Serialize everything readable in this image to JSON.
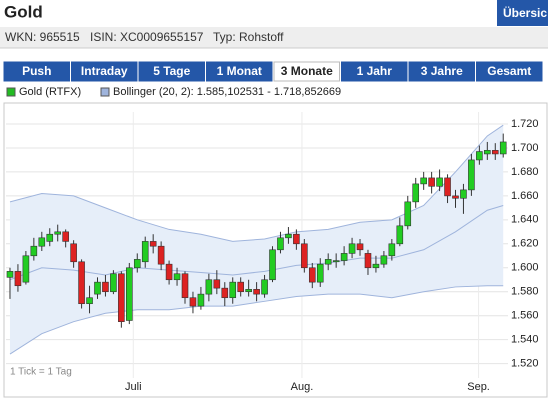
{
  "header": {
    "title": "Gold",
    "button": "Übersic",
    "info": [
      "WKN: 965515",
      "ISIN: XC0009655157",
      "Typ: Rohstoff"
    ]
  },
  "tabs": [
    "Push",
    "Intraday",
    "5 Tage",
    "1 Monat",
    "3 Monate",
    "1 Jahr",
    "3 Jahre",
    "Gesamt"
  ],
  "active_tab": 4,
  "chart_data": {
    "type": "candlestick",
    "series": [
      {
        "name": "Gold (RTFX)",
        "color": "#22bb22",
        "up_color": "#22cc22",
        "down_color": "#dd2222",
        "open": [
          1592,
          1597,
          1588,
          1610,
          1618,
          1622,
          1628,
          1630,
          1620,
          1605,
          1570,
          1578,
          1588,
          1580,
          1595,
          1556,
          1600,
          1605,
          1622,
          1618,
          1603,
          1590,
          1595,
          1575,
          1568,
          1578,
          1590,
          1583,
          1575,
          1588,
          1580,
          1582,
          1578,
          1590,
          1615,
          1625,
          1628,
          1620,
          1600,
          1588,
          1603,
          1605,
          1606,
          1612,
          1620,
          1612,
          1600,
          1603,
          1610,
          1620,
          1635,
          1655,
          1670,
          1675,
          1668,
          1675,
          1660,
          1658,
          1665,
          1690,
          1695,
          1698,
          1695
        ],
        "high": [
          1600,
          1603,
          1614,
          1625,
          1630,
          1633,
          1636,
          1632,
          1623,
          1607,
          1585,
          1592,
          1594,
          1598,
          1597,
          1604,
          1612,
          1626,
          1628,
          1622,
          1606,
          1600,
          1597,
          1580,
          1584,
          1595,
          1598,
          1588,
          1592,
          1592,
          1590,
          1588,
          1594,
          1618,
          1630,
          1634,
          1632,
          1624,
          1604,
          1608,
          1612,
          1612,
          1618,
          1625,
          1624,
          1615,
          1610,
          1614,
          1624,
          1642,
          1660,
          1675,
          1680,
          1680,
          1682,
          1678,
          1665,
          1670,
          1695,
          1702,
          1705,
          1704,
          1712
        ],
        "low": [
          1574,
          1580,
          1586,
          1606,
          1614,
          1618,
          1622,
          1617,
          1600,
          1566,
          1562,
          1574,
          1576,
          1578,
          1550,
          1553,
          1596,
          1600,
          1612,
          1598,
          1586,
          1585,
          1570,
          1562,
          1565,
          1572,
          1578,
          1568,
          1570,
          1576,
          1576,
          1572,
          1575,
          1588,
          1612,
          1620,
          1615,
          1596,
          1583,
          1584,
          1598,
          1600,
          1602,
          1608,
          1610,
          1594,
          1596,
          1600,
          1606,
          1618,
          1632,
          1650,
          1665,
          1662,
          1664,
          1654,
          1650,
          1645,
          1660,
          1686,
          1690,
          1690,
          1692
        ],
        "close": [
          1597,
          1585,
          1610,
          1618,
          1625,
          1628,
          1630,
          1622,
          1605,
          1570,
          1575,
          1588,
          1580,
          1595,
          1555,
          1600,
          1607,
          1622,
          1618,
          1603,
          1590,
          1595,
          1575,
          1568,
          1578,
          1590,
          1583,
          1575,
          1588,
          1580,
          1582,
          1578,
          1590,
          1615,
          1625,
          1628,
          1620,
          1600,
          1588,
          1603,
          1607,
          1606,
          1612,
          1620,
          1615,
          1600,
          1603,
          1610,
          1620,
          1635,
          1655,
          1670,
          1675,
          1668,
          1675,
          1660,
          1658,
          1665,
          1690,
          1697,
          1698,
          1695,
          1705
        ]
      },
      {
        "name": "Bollinger (20, 2): 1.585,102531 - 1.718,852669",
        "color": "#9fb4dc",
        "fill": "#e6eef9",
        "x": [
          0,
          4,
          8,
          12,
          16,
          20,
          24,
          28,
          32,
          36,
          40,
          44,
          48,
          52,
          56,
          60,
          62
        ],
        "upper": [
          1655,
          1662,
          1660,
          1650,
          1640,
          1632,
          1628,
          1622,
          1624,
          1630,
          1632,
          1638,
          1640,
          1652,
          1680,
          1710,
          1719
        ],
        "middle": [
          1590,
          1600,
          1598,
          1594,
          1600,
          1598,
          1596,
          1594,
          1597,
          1602,
          1604,
          1608,
          1608,
          1615,
          1630,
          1648,
          1652
        ],
        "lower": [
          1528,
          1545,
          1555,
          1562,
          1565,
          1565,
          1568,
          1568,
          1572,
          1576,
          1578,
          1578,
          1575,
          1580,
          1584,
          1585,
          1585
        ]
      }
    ],
    "xlim": [
      -0.5,
      62.6
    ],
    "xticks": [
      {
        "value": 15.5,
        "label": "Juli"
      },
      {
        "value": 36.7,
        "label": "Aug."
      },
      {
        "value": 58.9,
        "label": "Sep."
      }
    ],
    "ylim": [
      1508,
      1730
    ],
    "yticks": [
      {
        "value": 1520,
        "label": "1.520"
      },
      {
        "value": 1540,
        "label": "1.540"
      },
      {
        "value": 1560,
        "label": "1.560"
      },
      {
        "value": 1580,
        "label": "1.580"
      },
      {
        "value": 1600,
        "label": "1.600"
      },
      {
        "value": 1620,
        "label": "1.620"
      },
      {
        "value": 1640,
        "label": "1.640"
      },
      {
        "value": 1660,
        "label": "1.660"
      },
      {
        "value": 1680,
        "label": "1.680"
      },
      {
        "value": 1700,
        "label": "1.700"
      },
      {
        "value": 1720,
        "label": "1.720"
      }
    ],
    "grid": true,
    "annotation": "1 Tick = 1 Tag"
  }
}
